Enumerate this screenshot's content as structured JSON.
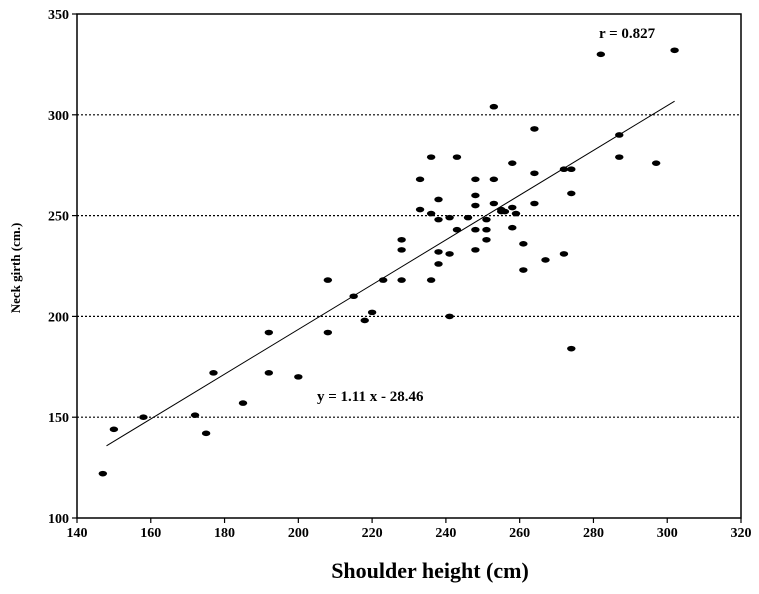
{
  "chart_data": {
    "type": "scatter",
    "title": "",
    "xlabel": "Shoulder height (cm)",
    "ylabel": "Neck girth (cm.)",
    "xlim": [
      140,
      320
    ],
    "ylim": [
      100,
      350
    ],
    "xticks": [
      "140",
      "160",
      "180",
      "200",
      "220",
      "240",
      "260",
      "280",
      "300",
      "320"
    ],
    "yticks": [
      "100",
      "150",
      "200",
      "250",
      "300",
      "350"
    ],
    "grid": "horizontal dotted",
    "annotations": {
      "correlation": "r = 0.827",
      "equation": "y = 1.11 x - 28.46"
    },
    "trendline": {
      "slope": 1.11,
      "intercept": -28.46,
      "x_range": [
        148,
        302
      ]
    },
    "points": [
      [
        147,
        122
      ],
      [
        150,
        144
      ],
      [
        158,
        150
      ],
      [
        172,
        151
      ],
      [
        175,
        142
      ],
      [
        177,
        172
      ],
      [
        185,
        157
      ],
      [
        192,
        192
      ],
      [
        192,
        172
      ],
      [
        200,
        170
      ],
      [
        208,
        218
      ],
      [
        208,
        192
      ],
      [
        215,
        210
      ],
      [
        218,
        198
      ],
      [
        220,
        202
      ],
      [
        223,
        218
      ],
      [
        228,
        238
      ],
      [
        228,
        233
      ],
      [
        228,
        218
      ],
      [
        233,
        268
      ],
      [
        233,
        253
      ],
      [
        236,
        279
      ],
      [
        236,
        251
      ],
      [
        236,
        218
      ],
      [
        238,
        258
      ],
      [
        238,
        248
      ],
      [
        238,
        232
      ],
      [
        238,
        226
      ],
      [
        241,
        249
      ],
      [
        241,
        231
      ],
      [
        241,
        200
      ],
      [
        243,
        279
      ],
      [
        243,
        243
      ],
      [
        246,
        249
      ],
      [
        248,
        268
      ],
      [
        248,
        260
      ],
      [
        248,
        255
      ],
      [
        248,
        243
      ],
      [
        248,
        233
      ],
      [
        251,
        248
      ],
      [
        251,
        243
      ],
      [
        251,
        238
      ],
      [
        253,
        304
      ],
      [
        253,
        268
      ],
      [
        253,
        256
      ],
      [
        255,
        252
      ],
      [
        255,
        253
      ],
      [
        256,
        252
      ],
      [
        258,
        276
      ],
      [
        258,
        254
      ],
      [
        259,
        251
      ],
      [
        258,
        244
      ],
      [
        261,
        236
      ],
      [
        261,
        223
      ],
      [
        264,
        293
      ],
      [
        264,
        271
      ],
      [
        264,
        256
      ],
      [
        267,
        228
      ],
      [
        272,
        273
      ],
      [
        272,
        231
      ],
      [
        274,
        273
      ],
      [
        274,
        261
      ],
      [
        274,
        184
      ],
      [
        282,
        330
      ],
      [
        287,
        290
      ],
      [
        287,
        279
      ],
      [
        297,
        276
      ],
      [
        302,
        332
      ]
    ]
  }
}
